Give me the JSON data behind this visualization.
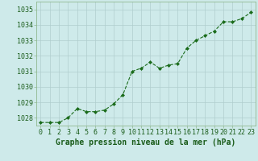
{
  "hours": [
    0,
    1,
    2,
    3,
    4,
    5,
    6,
    7,
    8,
    9,
    10,
    11,
    12,
    13,
    14,
    15,
    16,
    17,
    18,
    19,
    20,
    21,
    22,
    23
  ],
  "pressure": [
    1027.7,
    1027.7,
    1027.7,
    1028.0,
    1028.6,
    1028.4,
    1028.4,
    1028.5,
    1028.9,
    1029.5,
    1031.0,
    1031.2,
    1031.6,
    1031.2,
    1031.4,
    1031.5,
    1032.5,
    1033.0,
    1033.3,
    1033.6,
    1034.2,
    1034.2,
    1034.4,
    1034.8
  ],
  "ylabel_values": [
    1028,
    1029,
    1030,
    1031,
    1032,
    1033,
    1034,
    1035
  ],
  "ylim": [
    1027.5,
    1035.5
  ],
  "xlim": [
    -0.5,
    23.5
  ],
  "line_color": "#1a6b1a",
  "marker_color": "#1a6b1a",
  "bg_color": "#ceeaea",
  "grid_color": "#b0cece",
  "border_color": "#90b890",
  "xlabel": "Graphe pression niveau de la mer (hPa)",
  "xlabel_color": "#1a5c1a",
  "tick_label_color": "#1a5c1a",
  "axis_label_fontsize": 7.0,
  "tick_fontsize": 6.0
}
